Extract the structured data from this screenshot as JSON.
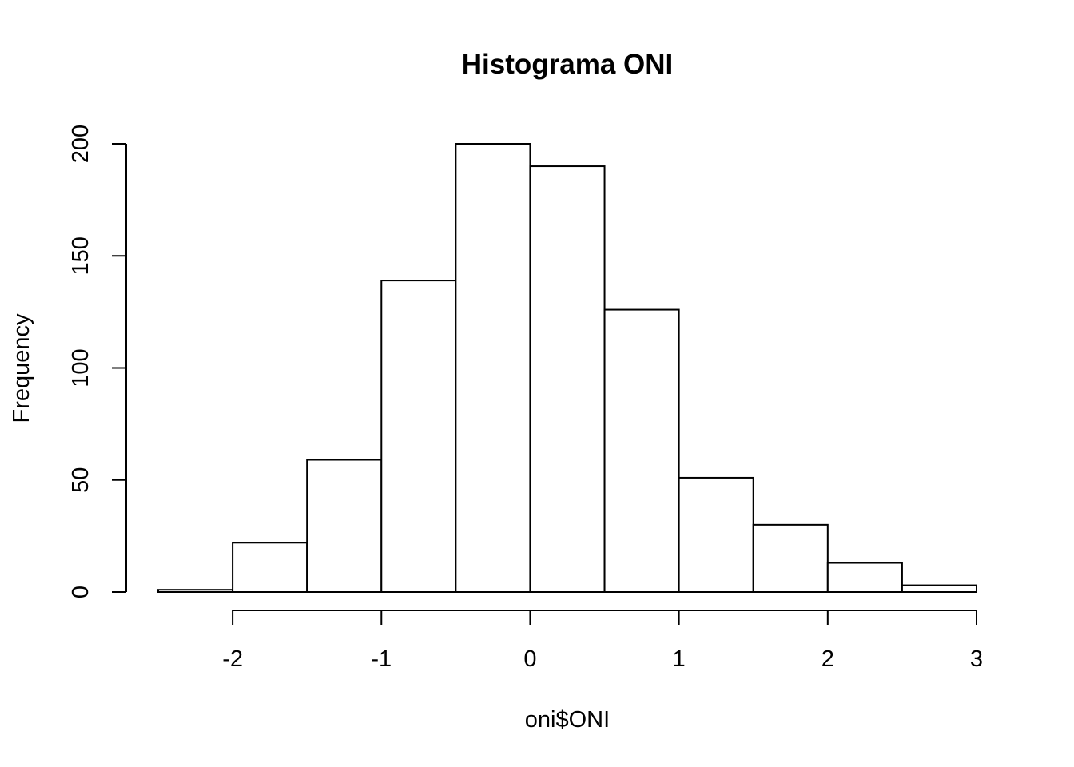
{
  "chart_data": {
    "type": "histogram",
    "title": "Histograma ONI",
    "xlabel": "oni$ONI",
    "ylabel": "Frequency",
    "bin_edges": [
      -2.5,
      -2.0,
      -1.5,
      -1.0,
      -0.5,
      0.0,
      0.5,
      1.0,
      1.5,
      2.0,
      2.5,
      3.0
    ],
    "values": [
      1,
      22,
      59,
      139,
      200,
      190,
      126,
      51,
      30,
      13,
      3
    ],
    "xlim": [
      -2.5,
      3.0
    ],
    "ylim": [
      0,
      200
    ],
    "x_ticks": [
      -2,
      -1,
      0,
      1,
      2,
      3
    ],
    "x_tick_labels": [
      "-2",
      "-1",
      "0",
      "1",
      "2",
      "3"
    ],
    "y_ticks": [
      0,
      50,
      100,
      150,
      200
    ],
    "y_tick_labels": [
      "0",
      "50",
      "100",
      "150",
      "200"
    ],
    "grid": false,
    "legend": "none",
    "colors": {
      "bar_fill": "#ffffff",
      "bar_stroke": "#000000"
    }
  }
}
